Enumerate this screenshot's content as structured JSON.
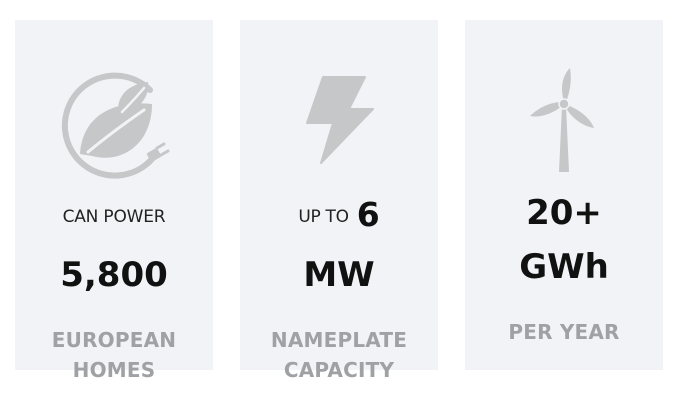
{
  "stats": [
    {
      "icon": "eco-leaf-plug-icon",
      "prefix": "CAN POWER",
      "value": "5,800",
      "caption_line1": "EUROPEAN",
      "caption_line2": "HOMES"
    },
    {
      "icon": "lightning-bolt-icon",
      "prefix": "UP TO",
      "value_part1": "6",
      "value_part2": "MW",
      "caption_line1": "NAMEPLATE",
      "caption_line2": "CAPACITY"
    },
    {
      "icon": "wind-turbine-icon",
      "value_part1": "20+",
      "value_part2": "GWh",
      "caption_line1": "PER YEAR"
    }
  ],
  "colors": {
    "card_background": "#f2f3f6",
    "icon_gray": "#c6c7c9",
    "caption_gray": "#a0a1a4",
    "value_text": "#111111"
  }
}
